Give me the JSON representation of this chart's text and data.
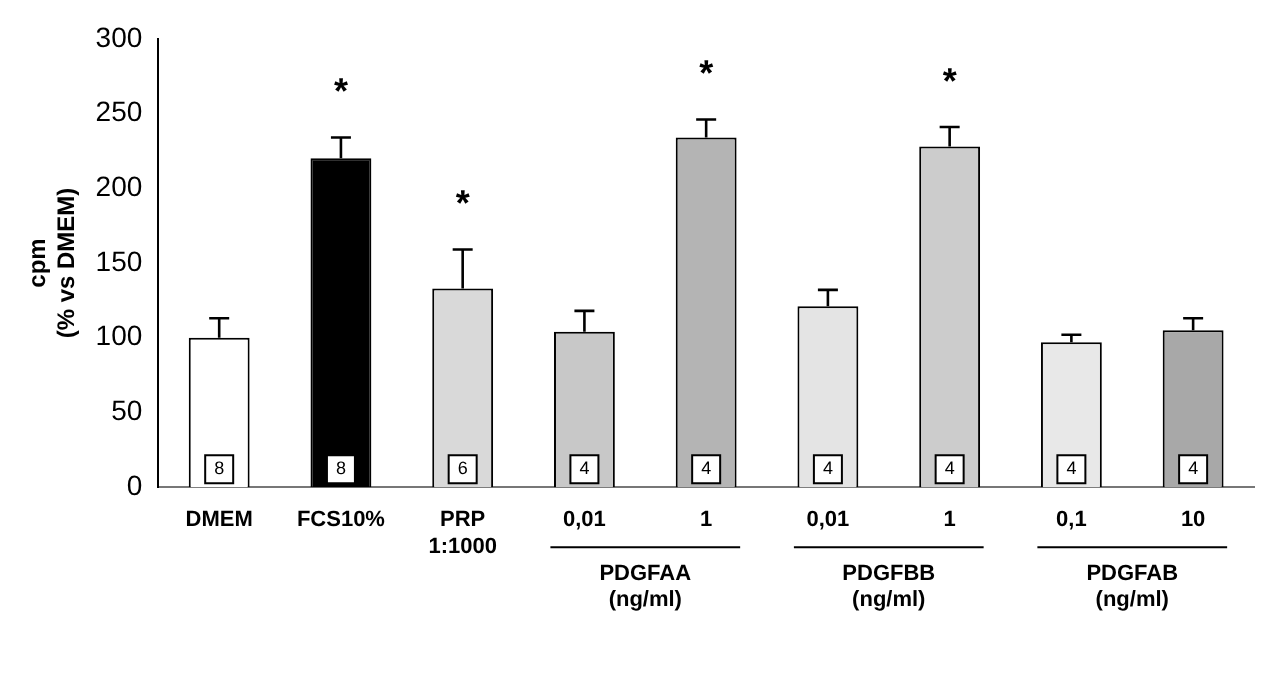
{
  "chart_data": {
    "type": "bar",
    "ylabel": "cpm\n(% vs DMEM)",
    "categories": [
      "DMEM",
      "FCS10%",
      "PRP\n1:1000",
      "0,01",
      "1",
      "0,01",
      "1",
      "0,1",
      "10"
    ],
    "values": [
      100,
      220,
      133,
      104,
      234,
      121,
      228,
      97,
      105
    ],
    "errors": [
      13,
      14,
      26,
      14,
      12,
      11,
      13,
      5,
      8
    ],
    "colors": [
      "#ffffff",
      "#000000",
      "#d9d9d9",
      "#c8c8c8",
      "#b4b4b4",
      "#e4e4e4",
      "#cccccc",
      "#e8e8e8",
      "#a8a8a8"
    ],
    "ylim": [
      0,
      300
    ],
    "yticks": [
      0,
      50,
      100,
      150,
      200,
      250,
      300
    ],
    "grid": false,
    "legend": false,
    "value_labels": [
      null,
      "*",
      "*",
      null,
      "*",
      null,
      "*",
      null,
      null
    ],
    "annotations": [
      "8",
      "8",
      "6",
      "4",
      "4",
      "4",
      "4",
      "4",
      "4",
      "PDGFAA\n(ng/ml)",
      "PDGFBB\n(ng/ml)",
      "PDGFAB\n(ng/ml)"
    ]
  }
}
